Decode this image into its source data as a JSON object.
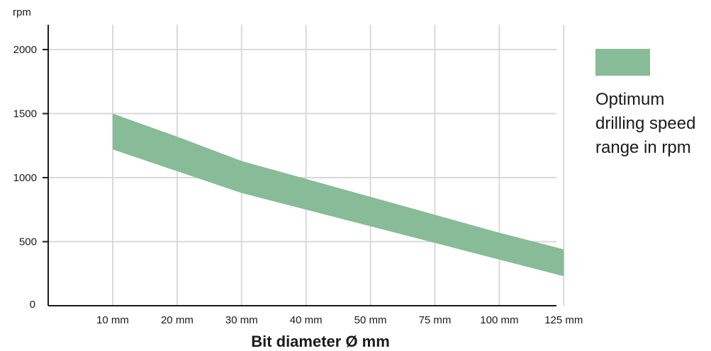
{
  "chart_data": {
    "type": "area",
    "xlabel": "Bit diameter Ø mm",
    "ylabel": "rpm",
    "categories": [
      "10 mm",
      "20 mm",
      "30 mm",
      "40 mm",
      "50 mm",
      "75 mm",
      "100 mm",
      "125 mm"
    ],
    "y_ticks": [
      0,
      500,
      1000,
      1500,
      2000
    ],
    "ylim": [
      0,
      2200
    ],
    "grid": true,
    "legend_placement": "right",
    "series": [
      {
        "name": "Optimum drilling speed range in rpm",
        "lower": [
          1220,
          1050,
          880,
          750,
          620,
          490,
          360,
          230
        ],
        "upper": [
          1500,
          1320,
          1130,
          990,
          850,
          710,
          570,
          440
        ]
      }
    ]
  },
  "legend": {
    "lines": [
      "Optimum",
      "drilling speed",
      "range in rpm"
    ]
  },
  "colors": {
    "band": "#88bb98",
    "grid": "#d9d9d9",
    "axis": "#1a1a1a"
  }
}
